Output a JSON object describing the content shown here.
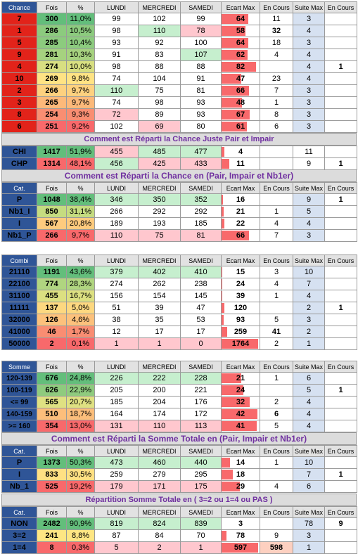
{
  "colors": {
    "header_blue": "#2f5597",
    "percent_green": "#63be7b",
    "percent_red": "#f8696b",
    "banner_purple": "#7030a0",
    "cell_green": "#c6efce",
    "cell_pink": "#ffc7ce"
  },
  "headers": {
    "chance": [
      "Chance",
      "Fois",
      "%",
      "LUNDI",
      "MERCREDI",
      "SAMEDI",
      "Ecart Max",
      "En Cours",
      "Suite Max",
      "En Cours"
    ],
    "cat": [
      "Cat.",
      "Fois",
      "%",
      "LUNDI",
      "MERCREDI",
      "SAMEDI",
      "Ecart Max",
      "En Cours",
      "Suite Max",
      "En Cours"
    ],
    "combi": [
      "Combi",
      "Fois",
      "%",
      "LUNDI",
      "MERCREDI",
      "SAMEDI",
      "Ecart Max",
      "En Cours",
      "Suite Max",
      "En Cours"
    ],
    "somme": [
      "Somme",
      "Fois",
      "%",
      "LUNDI",
      "MERCREDI",
      "SAMEDI",
      "Ecart Max",
      "En Cours",
      "Suite Max",
      "En Cours"
    ]
  },
  "chance_rows": [
    {
      "label": "7",
      "fois": "300",
      "pct": "11,0%",
      "lundi": "99",
      "mercredi": "102",
      "samedi": "99",
      "ecart": "64",
      "encours": "11",
      "suite": "3",
      "encours2": ""
    },
    {
      "label": "1",
      "fois": "286",
      "pct": "10,5%",
      "lundi": "98",
      "mercredi": "110",
      "samedi": "78",
      "ecart": "58",
      "encours": "32",
      "suite": "4",
      "encours2": ""
    },
    {
      "label": "5",
      "fois": "285",
      "pct": "10,4%",
      "lundi": "93",
      "mercredi": "92",
      "samedi": "100",
      "ecart": "64",
      "encours": "18",
      "suite": "3",
      "encours2": ""
    },
    {
      "label": "9",
      "fois": "281",
      "pct": "10,3%",
      "lundi": "91",
      "mercredi": "83",
      "samedi": "107",
      "ecart": "62",
      "encours": "4",
      "suite": "4",
      "encours2": ""
    },
    {
      "label": "4",
      "fois": "274",
      "pct": "10,0%",
      "lundi": "98",
      "mercredi": "88",
      "samedi": "88",
      "ecart": "82",
      "encours": "",
      "suite": "4",
      "encours2": "1"
    },
    {
      "label": "10",
      "fois": "269",
      "pct": "9,8%",
      "lundi": "74",
      "mercredi": "104",
      "samedi": "91",
      "ecart": "47",
      "encours": "23",
      "suite": "4",
      "encours2": ""
    },
    {
      "label": "2",
      "fois": "266",
      "pct": "9,7%",
      "lundi": "110",
      "mercredi": "75",
      "samedi": "81",
      "ecart": "66",
      "encours": "7",
      "suite": "3",
      "encours2": ""
    },
    {
      "label": "3",
      "fois": "265",
      "pct": "9,7%",
      "lundi": "74",
      "mercredi": "98",
      "samedi": "93",
      "ecart": "48",
      "encours": "1",
      "suite": "3",
      "encours2": ""
    },
    {
      "label": "8",
      "fois": "254",
      "pct": "9,3%",
      "lundi": "72",
      "mercredi": "89",
      "samedi": "93",
      "ecart": "67",
      "encours": "8",
      "suite": "3",
      "encours2": ""
    },
    {
      "label": "6",
      "fois": "251",
      "pct": "9,2%",
      "lundi": "102",
      "mercredi": "69",
      "samedi": "80",
      "ecart": "61",
      "encours": "6",
      "suite": "3",
      "encours2": ""
    }
  ],
  "banner1": "Comment est Réparti la Chance Juste Pair et Impair",
  "chi_rows": [
    {
      "label": "CHI",
      "fois": "1417",
      "pct": "51,9%",
      "lundi": "455",
      "mercredi": "485",
      "samedi": "477",
      "ecart": "4",
      "encours": "",
      "suite": "11",
      "encours2": ""
    },
    {
      "label": "CHP",
      "fois": "1314",
      "pct": "48,1%",
      "lundi": "456",
      "mercredi": "425",
      "samedi": "433",
      "ecart": "11",
      "encours": "",
      "suite": "9",
      "encours2": "1"
    }
  ],
  "banner2": "Comment est Réparti la Chance en (Pair, Impair et Nb1er)",
  "cat1_rows": [
    {
      "label": "P",
      "fois": "1048",
      "pct": "38,4%",
      "lundi": "346",
      "mercredi": "350",
      "samedi": "352",
      "ecart": "16",
      "encours": "",
      "suite": "9",
      "encours2": "1"
    },
    {
      "label": "Nb1_I",
      "fois": "850",
      "pct": "31,1%",
      "lundi": "266",
      "mercredi": "292",
      "samedi": "292",
      "ecart": "21",
      "encours": "1",
      "suite": "5",
      "encours2": ""
    },
    {
      "label": "I",
      "fois": "567",
      "pct": "20,8%",
      "lundi": "189",
      "mercredi": "193",
      "samedi": "185",
      "ecart": "22",
      "encours": "4",
      "suite": "4",
      "encours2": ""
    },
    {
      "label": "Nb1_P",
      "fois": "266",
      "pct": "9,7%",
      "lundi": "110",
      "mercredi": "75",
      "samedi": "81",
      "ecart": "66",
      "encours": "7",
      "suite": "3",
      "encours2": ""
    }
  ],
  "combi_rows": [
    {
      "label": "21110",
      "fois": "1191",
      "pct": "43,6%",
      "lundi": "379",
      "mercredi": "402",
      "samedi": "410",
      "ecart": "15",
      "encours": "3",
      "suite": "10",
      "encours2": ""
    },
    {
      "label": "22100",
      "fois": "774",
      "pct": "28,3%",
      "lundi": "274",
      "mercredi": "262",
      "samedi": "238",
      "ecart": "24",
      "encours": "4",
      "suite": "7",
      "encours2": ""
    },
    {
      "label": "31100",
      "fois": "455",
      "pct": "16,7%",
      "lundi": "156",
      "mercredi": "154",
      "samedi": "145",
      "ecart": "39",
      "encours": "1",
      "suite": "4",
      "encours2": ""
    },
    {
      "label": "11111",
      "fois": "137",
      "pct": "5,0%",
      "lundi": "51",
      "mercredi": "39",
      "samedi": "47",
      "ecart": "120",
      "encours": "",
      "suite": "2",
      "encours2": "1"
    },
    {
      "label": "32000",
      "fois": "126",
      "pct": "4,6%",
      "lundi": "38",
      "mercredi": "35",
      "samedi": "53",
      "ecart": "93",
      "encours": "5",
      "suite": "3",
      "encours2": ""
    },
    {
      "label": "41000",
      "fois": "46",
      "pct": "1,7%",
      "lundi": "12",
      "mercredi": "17",
      "samedi": "17",
      "ecart": "259",
      "encours": "41",
      "suite": "2",
      "encours2": ""
    },
    {
      "label": "50000",
      "fois": "2",
      "pct": "0,1%",
      "lundi": "1",
      "mercredi": "1",
      "samedi": "0",
      "ecart": "1764",
      "encours": "2",
      "suite": "1",
      "encours2": ""
    }
  ],
  "somme_rows": [
    {
      "label": "120-139",
      "fois": "676",
      "pct": "24,8%",
      "lundi": "226",
      "mercredi": "222",
      "samedi": "228",
      "ecart": "21",
      "encours": "1",
      "suite": "6",
      "encours2": ""
    },
    {
      "label": "100-119",
      "fois": "626",
      "pct": "22,9%",
      "lundi": "205",
      "mercredi": "200",
      "samedi": "221",
      "ecart": "24",
      "encours": "",
      "suite": "5",
      "encours2": "1"
    },
    {
      "label": "<= 99",
      "fois": "565",
      "pct": "20,7%",
      "lundi": "185",
      "mercredi": "204",
      "samedi": "176",
      "ecart": "32",
      "encours": "2",
      "suite": "4",
      "encours2": ""
    },
    {
      "label": "140-159",
      "fois": "510",
      "pct": "18,7%",
      "lundi": "164",
      "mercredi": "174",
      "samedi": "172",
      "ecart": "42",
      "encours": "6",
      "suite": "4",
      "encours2": ""
    },
    {
      "label": ">= 160",
      "fois": "354",
      "pct": "13,0%",
      "lundi": "131",
      "mercredi": "110",
      "samedi": "113",
      "ecart": "41",
      "encours": "5",
      "suite": "4",
      "encours2": ""
    }
  ],
  "banner3": "Comment est Réparti la Somme Totale en (Pair, Impair et Nb1er)",
  "cat2_rows": [
    {
      "label": "P",
      "fois": "1373",
      "pct": "50,3%",
      "lundi": "473",
      "mercredi": "460",
      "samedi": "440",
      "ecart": "14",
      "encours": "1",
      "suite": "10",
      "encours2": ""
    },
    {
      "label": "I",
      "fois": "833",
      "pct": "30,5%",
      "lundi": "259",
      "mercredi": "279",
      "samedi": "295",
      "ecart": "18",
      "encours": "",
      "suite": "7",
      "encours2": "1"
    },
    {
      "label": "Nb_1",
      "fois": "525",
      "pct": "19,2%",
      "lundi": "179",
      "mercredi": "171",
      "samedi": "175",
      "ecart": "29",
      "encours": "4",
      "suite": "6",
      "encours2": ""
    }
  ],
  "banner4": "Répartition Somme Totale en ( 3=2 ou 1=4 ou PAS )",
  "cat3_rows": [
    {
      "label": "NON",
      "fois": "2482",
      "pct": "90,9%",
      "lundi": "819",
      "mercredi": "824",
      "samedi": "839",
      "ecart": "3",
      "encours": "",
      "suite": "78",
      "encours2": "9"
    },
    {
      "label": "3=2",
      "fois": "241",
      "pct": "8,8%",
      "lundi": "87",
      "mercredi": "84",
      "samedi": "70",
      "ecart": "78",
      "encours": "9",
      "suite": "3",
      "encours2": ""
    },
    {
      "label": "1=4",
      "fois": "8",
      "pct": "0,3%",
      "lundi": "5",
      "mercredi": "2",
      "samedi": "1",
      "ecart": "597",
      "encours": "598",
      "suite": "1",
      "encours2": ""
    }
  ]
}
